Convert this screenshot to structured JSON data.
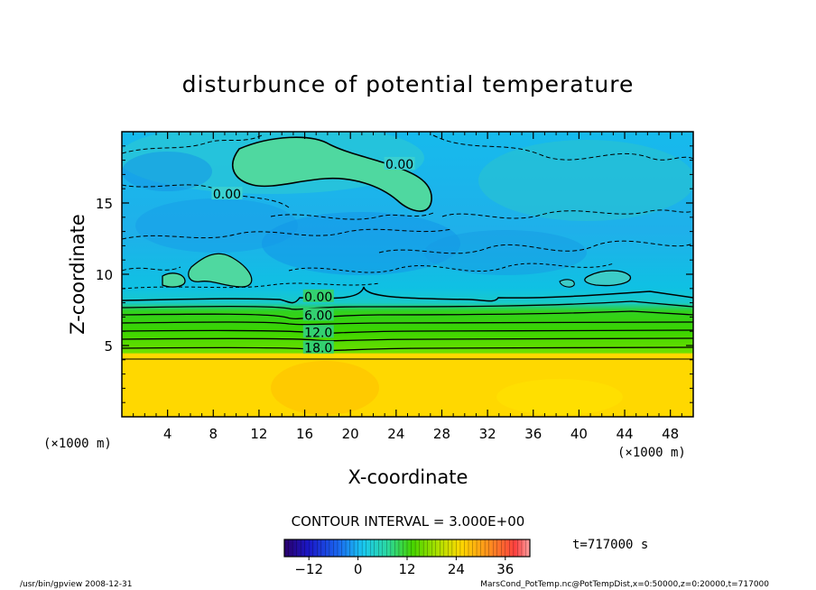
{
  "chart_data": {
    "type": "heatmap",
    "title": "disturbunce of potential temperature",
    "xlabel": "X-coordinate",
    "ylabel": "Z-coordinate",
    "x_unit": "(×1000 m)",
    "y_unit": "(×1000 m)",
    "xlim": [
      0,
      50
    ],
    "ylim": [
      0,
      20
    ],
    "x_ticks": [
      4,
      8,
      12,
      16,
      20,
      24,
      28,
      32,
      36,
      40,
      44,
      48
    ],
    "y_ticks": [
      5,
      10,
      15
    ],
    "contour_interval_text": "CONTOUR INTERVAL = 3.000E+00",
    "contour_labels": [
      {
        "text": "0.00",
        "x": 17.2,
        "z": 8.3
      },
      {
        "text": "6.00",
        "x": 17.2,
        "z": 7.0
      },
      {
        "text": "12.0",
        "x": 17.2,
        "z": 5.8
      },
      {
        "text": "18.0",
        "x": 17.2,
        "z": 4.7
      },
      {
        "text": "0.00",
        "x": 24.3,
        "z": 17.6
      },
      {
        "text": "0.00",
        "x": 9.2,
        "z": 15.5
      }
    ],
    "colorbar": {
      "min": -18,
      "max": 42,
      "tick_labels": [
        "-12",
        "0",
        "12",
        "24",
        "36"
      ],
      "tick_values": [
        -12,
        0,
        12,
        24,
        36
      ]
    },
    "time_label": "t=717000 s",
    "footer_left": "/usr/bin/gpview   2008-12-31",
    "footer_right": "MarsCond_PotTemp.nc@PotTempDist,x=0:50000,z=0:20000,t=717000"
  }
}
